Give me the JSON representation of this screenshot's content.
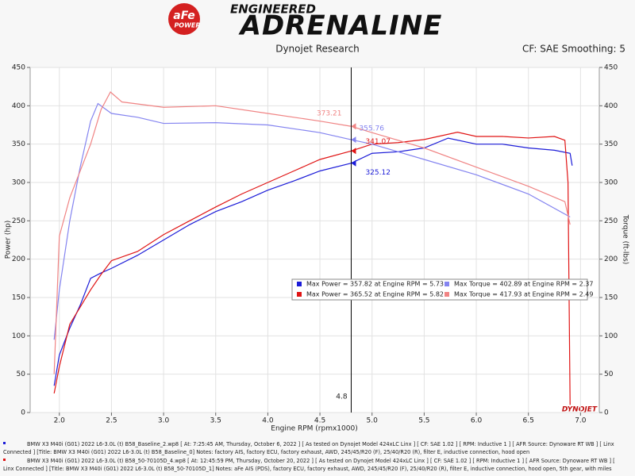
{
  "header": {
    "logo_top": "aFe",
    "logo_bottom": "POWER",
    "tagline": "ENGINEERED",
    "brand": "ADRENALINE"
  },
  "chart_data": {
    "type": "line",
    "title": "Dynojet Research",
    "subtitle": "CF: SAE Smoothing: 5",
    "x_label": "Engine RPM (rpmx1000)",
    "y_label": "Power (hp)",
    "y2_label": "Torque (ft-lbs)",
    "watermark": "DYNOJET",
    "xlim": [
      1.72,
      7.18
    ],
    "xticks": [
      {
        "value": 2,
        "label": "2.0"
      },
      2.5,
      {
        "value": 3,
        "label": "3.0"
      },
      3.5,
      {
        "value": 4,
        "label": "4.0"
      },
      4.5,
      {
        "value": 5,
        "label": "5.0"
      },
      5.5,
      {
        "value": 6,
        "label": "6.0"
      },
      6.5,
      {
        "value": 7,
        "label": "7.0"
      }
    ],
    "ylim": [
      0,
      450
    ],
    "yticks": [
      0,
      50,
      100,
      150,
      200,
      250,
      300,
      350,
      400,
      450
    ],
    "y2lim": [
      0,
      450
    ],
    "y2ticks": [
      0,
      50,
      100,
      150,
      200,
      250,
      300,
      350,
      400,
      450
    ],
    "grid": true,
    "cursor": {
      "x": 4.8,
      "label": "4.8"
    },
    "series": [
      {
        "name": "Max Power = 357.82 at Engine RPM = 5.73",
        "color": "#1c1cd8",
        "cursor_value": 325.12,
        "x": [
          1.95,
          2.0,
          2.1,
          2.2,
          2.3,
          2.4,
          2.5,
          2.75,
          3.0,
          3.25,
          3.5,
          3.75,
          4.0,
          4.25,
          4.5,
          4.8,
          5.0,
          5.25,
          5.5,
          5.73,
          6.0,
          6.25,
          6.5,
          6.75,
          6.9,
          6.92
        ],
        "values": [
          35,
          75,
          110,
          140,
          175,
          182,
          188,
          205,
          225,
          245,
          262,
          275,
          290,
          302,
          315,
          325.12,
          338,
          340,
          345,
          357.82,
          350,
          350,
          345,
          342,
          338,
          322
        ]
      },
      {
        "name": "Max Power = 365.52 at Engine RPM = 5.82",
        "color": "#e01414",
        "cursor_value": 341.07,
        "x": [
          1.95,
          2.0,
          2.1,
          2.3,
          2.4,
          2.5,
          2.75,
          3.0,
          3.25,
          3.5,
          3.75,
          4.0,
          4.25,
          4.5,
          4.8,
          5.0,
          5.25,
          5.5,
          5.82,
          6.0,
          6.25,
          6.5,
          6.75,
          6.85,
          6.88,
          6.9
        ],
        "values": [
          25,
          60,
          115,
          160,
          180,
          198,
          210,
          232,
          250,
          268,
          285,
          300,
          315,
          330,
          341.07,
          350,
          352,
          356,
          365.52,
          360,
          360,
          358,
          360,
          355,
          300,
          10
        ]
      },
      {
        "name": "Max Torque = 402.89 at Engine RPM = 2.37",
        "color": "#8484f0",
        "axis": "y2",
        "cursor_value": 355.76,
        "x": [
          1.95,
          2.0,
          2.1,
          2.2,
          2.3,
          2.37,
          2.5,
          2.75,
          3.0,
          3.5,
          4.0,
          4.5,
          4.8,
          5.0,
          5.5,
          6.0,
          6.5,
          6.9
        ],
        "values": [
          95,
          160,
          250,
          320,
          380,
          402.89,
          390,
          385,
          377,
          378,
          375,
          365,
          355.76,
          350,
          330,
          310,
          285,
          255
        ]
      },
      {
        "name": "Max Torque = 417.93 at Engine RPM = 2.49",
        "color": "#f08484",
        "axis": "y2",
        "cursor_value": 373.21,
        "x": [
          1.95,
          2.0,
          2.1,
          2.3,
          2.4,
          2.49,
          2.6,
          3.0,
          3.5,
          4.0,
          4.5,
          4.8,
          5.0,
          5.5,
          6.0,
          6.5,
          6.85,
          6.9
        ],
        "values": [
          50,
          230,
          280,
          350,
          395,
          417.93,
          405,
          398,
          400,
          390,
          380,
          373.21,
          365,
          345,
          320,
          295,
          275,
          245
        ]
      }
    ]
  },
  "footer": [
    {
      "lines": [
        "BMW X3 M40i (G01) 2022 L6-3.0L (t) B58_Baseline_2.wp8 [ At: 7:25:45 AM, Thursday, October 6, 2022 ] [ As tested on Dynojet Model 424xLC Linx ] [ CF: SAE 1.02 ] [ RPM: Inductive 1 ] [ AFR Source: Dynoware RT WB ] [ Linx",
        "Connected ] [Title: BMW X3 M40i (G01) 2022 L6-3.0L (t) B58_Baseline_0]  Notes: factory AIS, factory ECU, factory exhaust, AWD, 245/45/R20 (F), 25/40/R20 (R), filter E, inductive connection, hood open"
      ],
      "color": "#1c1cd8"
    },
    {
      "lines": [
        "BMW X3 M40i (G01) 2022 L6-3.0L (t) B58_50-70105D_4.wp8 [ At: 12:45:59 PM, Thursday, October 20, 2022 ] [ As tested on Dynojet Model 424xLC Linx ] [ CF: SAE 1.02 ] [ RPM: Inductive 1 ] [ AFR Source: Dynoware RT WB ] [",
        "Linx Connected ] [Title: BMW X3 M40i (G01) 2022 L6-3.0L (t) B58_50-70105D_1]  Notes: aFe AIS (PDS), factory ECU, factory exhaust, AWD, 245/45/R20 (F), 25/40/R20 (R), filter E, inductive connection, hood open, 5th gear, with miles"
      ],
      "color": "#e01414"
    }
  ]
}
